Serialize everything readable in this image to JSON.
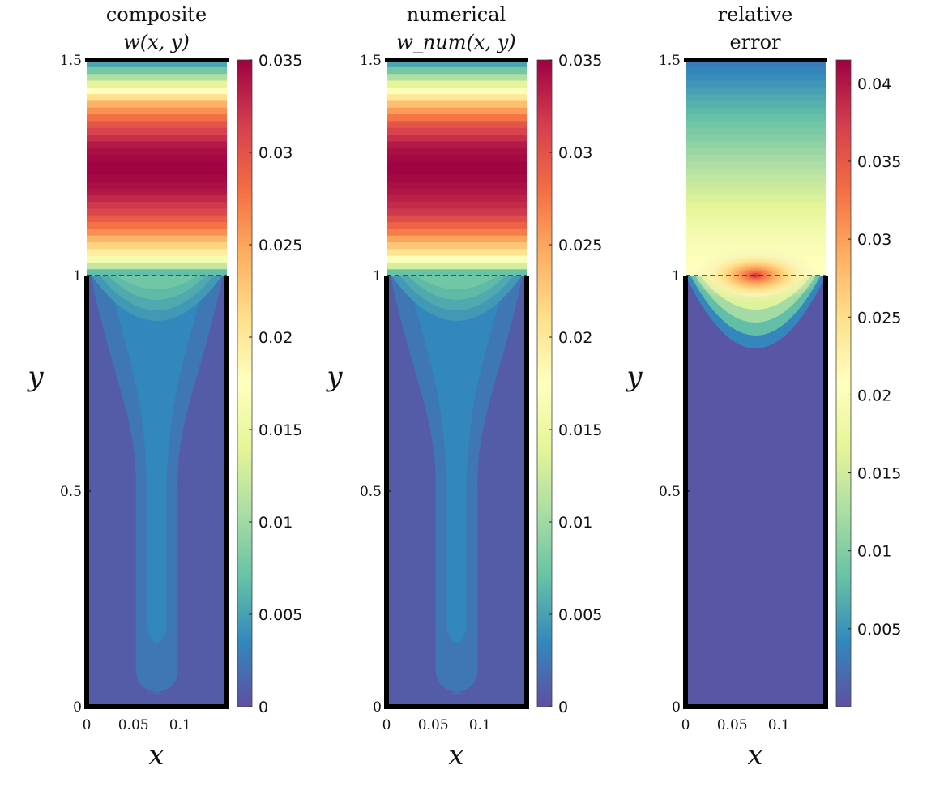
{
  "colors": {
    "spectral": [
      "#5e4fa2",
      "#3288bd",
      "#66c2a5",
      "#abdda4",
      "#e6f598",
      "#ffffbf",
      "#fee08b",
      "#fdae61",
      "#f46d43",
      "#d53e4f",
      "#9e0142"
    ],
    "wall": "#000000",
    "interface_line": "#1a1aff"
  },
  "chart_data": [
    {
      "type": "heatmap",
      "title_line1": "composite",
      "title_line2": "w(x, y)",
      "xlabel": "x",
      "ylabel": "y",
      "xlim": [
        0,
        0.15
      ],
      "ylim": [
        0,
        1.5
      ],
      "x_ticks": [
        0,
        0.05,
        0.1
      ],
      "x_tick_labels": [
        "0",
        "0.05",
        "0.1"
      ],
      "y_ticks": [
        0,
        0.5,
        1,
        1.5
      ],
      "y_tick_labels": [
        "0",
        "0.5",
        "1",
        "1.5"
      ],
      "colorbar": {
        "min": 0,
        "max": 0.035,
        "ticks": [
          0,
          0.005,
          0.01,
          0.015,
          0.02,
          0.025,
          0.03,
          0.035
        ],
        "tick_labels": [
          "0",
          "0.005",
          "0.01",
          "0.015",
          "0.02",
          "0.025",
          "0.03",
          "0.035"
        ]
      },
      "interface_y": 1,
      "upper_profile": {
        "y": [
          1.0,
          1.02,
          1.05,
          1.1,
          1.15,
          1.2,
          1.25,
          1.3,
          1.35,
          1.4,
          1.45,
          1.48,
          1.5
        ],
        "values": [
          0.004,
          0.011,
          0.019,
          0.026,
          0.031,
          0.034,
          0.035,
          0.034,
          0.03,
          0.024,
          0.013,
          0.007,
          0.004
        ]
      },
      "lower_field": {
        "channel_value": 0.0035,
        "wall_value": 0.0008,
        "tip_y": 0.15,
        "channel_halfwidth": 0.012,
        "bottom_y": 0.03
      }
    },
    {
      "type": "heatmap",
      "title_line1": "numerical",
      "title_line2": "w_num(x, y)",
      "xlabel": "x",
      "ylabel": "y",
      "xlim": [
        0,
        0.15
      ],
      "ylim": [
        0,
        1.5
      ],
      "x_ticks": [
        0,
        0.05,
        0.1
      ],
      "x_tick_labels": [
        "0",
        "0.05",
        "0.1"
      ],
      "y_ticks": [
        0,
        0.5,
        1,
        1.5
      ],
      "y_tick_labels": [
        "0",
        "0.5",
        "1",
        "1.5"
      ],
      "colorbar": {
        "min": 0,
        "max": 0.035,
        "ticks": [
          0,
          0.005,
          0.01,
          0.015,
          0.02,
          0.025,
          0.03,
          0.035
        ],
        "tick_labels": [
          "0",
          "0.005",
          "0.01",
          "0.015",
          "0.02",
          "0.025",
          "0.03",
          "0.035"
        ]
      },
      "interface_y": 1,
      "upper_profile": {
        "y": [
          1.0,
          1.02,
          1.05,
          1.1,
          1.15,
          1.2,
          1.25,
          1.3,
          1.35,
          1.4,
          1.45,
          1.48,
          1.5
        ],
        "values": [
          0.004,
          0.012,
          0.02,
          0.027,
          0.032,
          0.034,
          0.035,
          0.034,
          0.03,
          0.023,
          0.013,
          0.007,
          0.004
        ]
      },
      "lower_field": {
        "channel_value": 0.0035,
        "wall_value": 0.0008,
        "tip_y": 0.15,
        "channel_halfwidth": 0.012,
        "bottom_y": 0.03
      }
    },
    {
      "type": "heatmap",
      "title_line1": "relative",
      "title_line2": "error",
      "xlabel": "x",
      "ylabel": "y",
      "xlim": [
        0,
        0.15
      ],
      "ylim": [
        0,
        1.5
      ],
      "x_ticks": [
        0,
        0.05,
        0.1
      ],
      "x_tick_labels": [
        "0",
        "0.05",
        "0.1"
      ],
      "y_ticks": [
        0,
        0.5,
        1,
        1.5
      ],
      "y_tick_labels": [
        "0",
        "0.5",
        "1",
        "1.5"
      ],
      "colorbar": {
        "min": 0,
        "max": 0.0415,
        "ticks": [
          0.005,
          0.01,
          0.015,
          0.02,
          0.025,
          0.03,
          0.035,
          0.04
        ],
        "tick_labels": [
          "0.005",
          "0.01",
          "0.015",
          "0.02",
          "0.025",
          "0.03",
          "0.035",
          "0.04"
        ]
      },
      "interface_y": 1,
      "upper_profile": {
        "y": [
          1.0,
          1.05,
          1.1,
          1.15,
          1.2,
          1.25,
          1.3,
          1.35,
          1.4,
          1.45,
          1.5
        ],
        "values": [
          0.021,
          0.02,
          0.019,
          0.017,
          0.015,
          0.013,
          0.011,
          0.009,
          0.007,
          0.005,
          0.003
        ]
      },
      "hotspot": {
        "x": 0.075,
        "y": 1.0,
        "peak": 0.041
      },
      "lower_field": {
        "value": 0.0005
      }
    }
  ]
}
